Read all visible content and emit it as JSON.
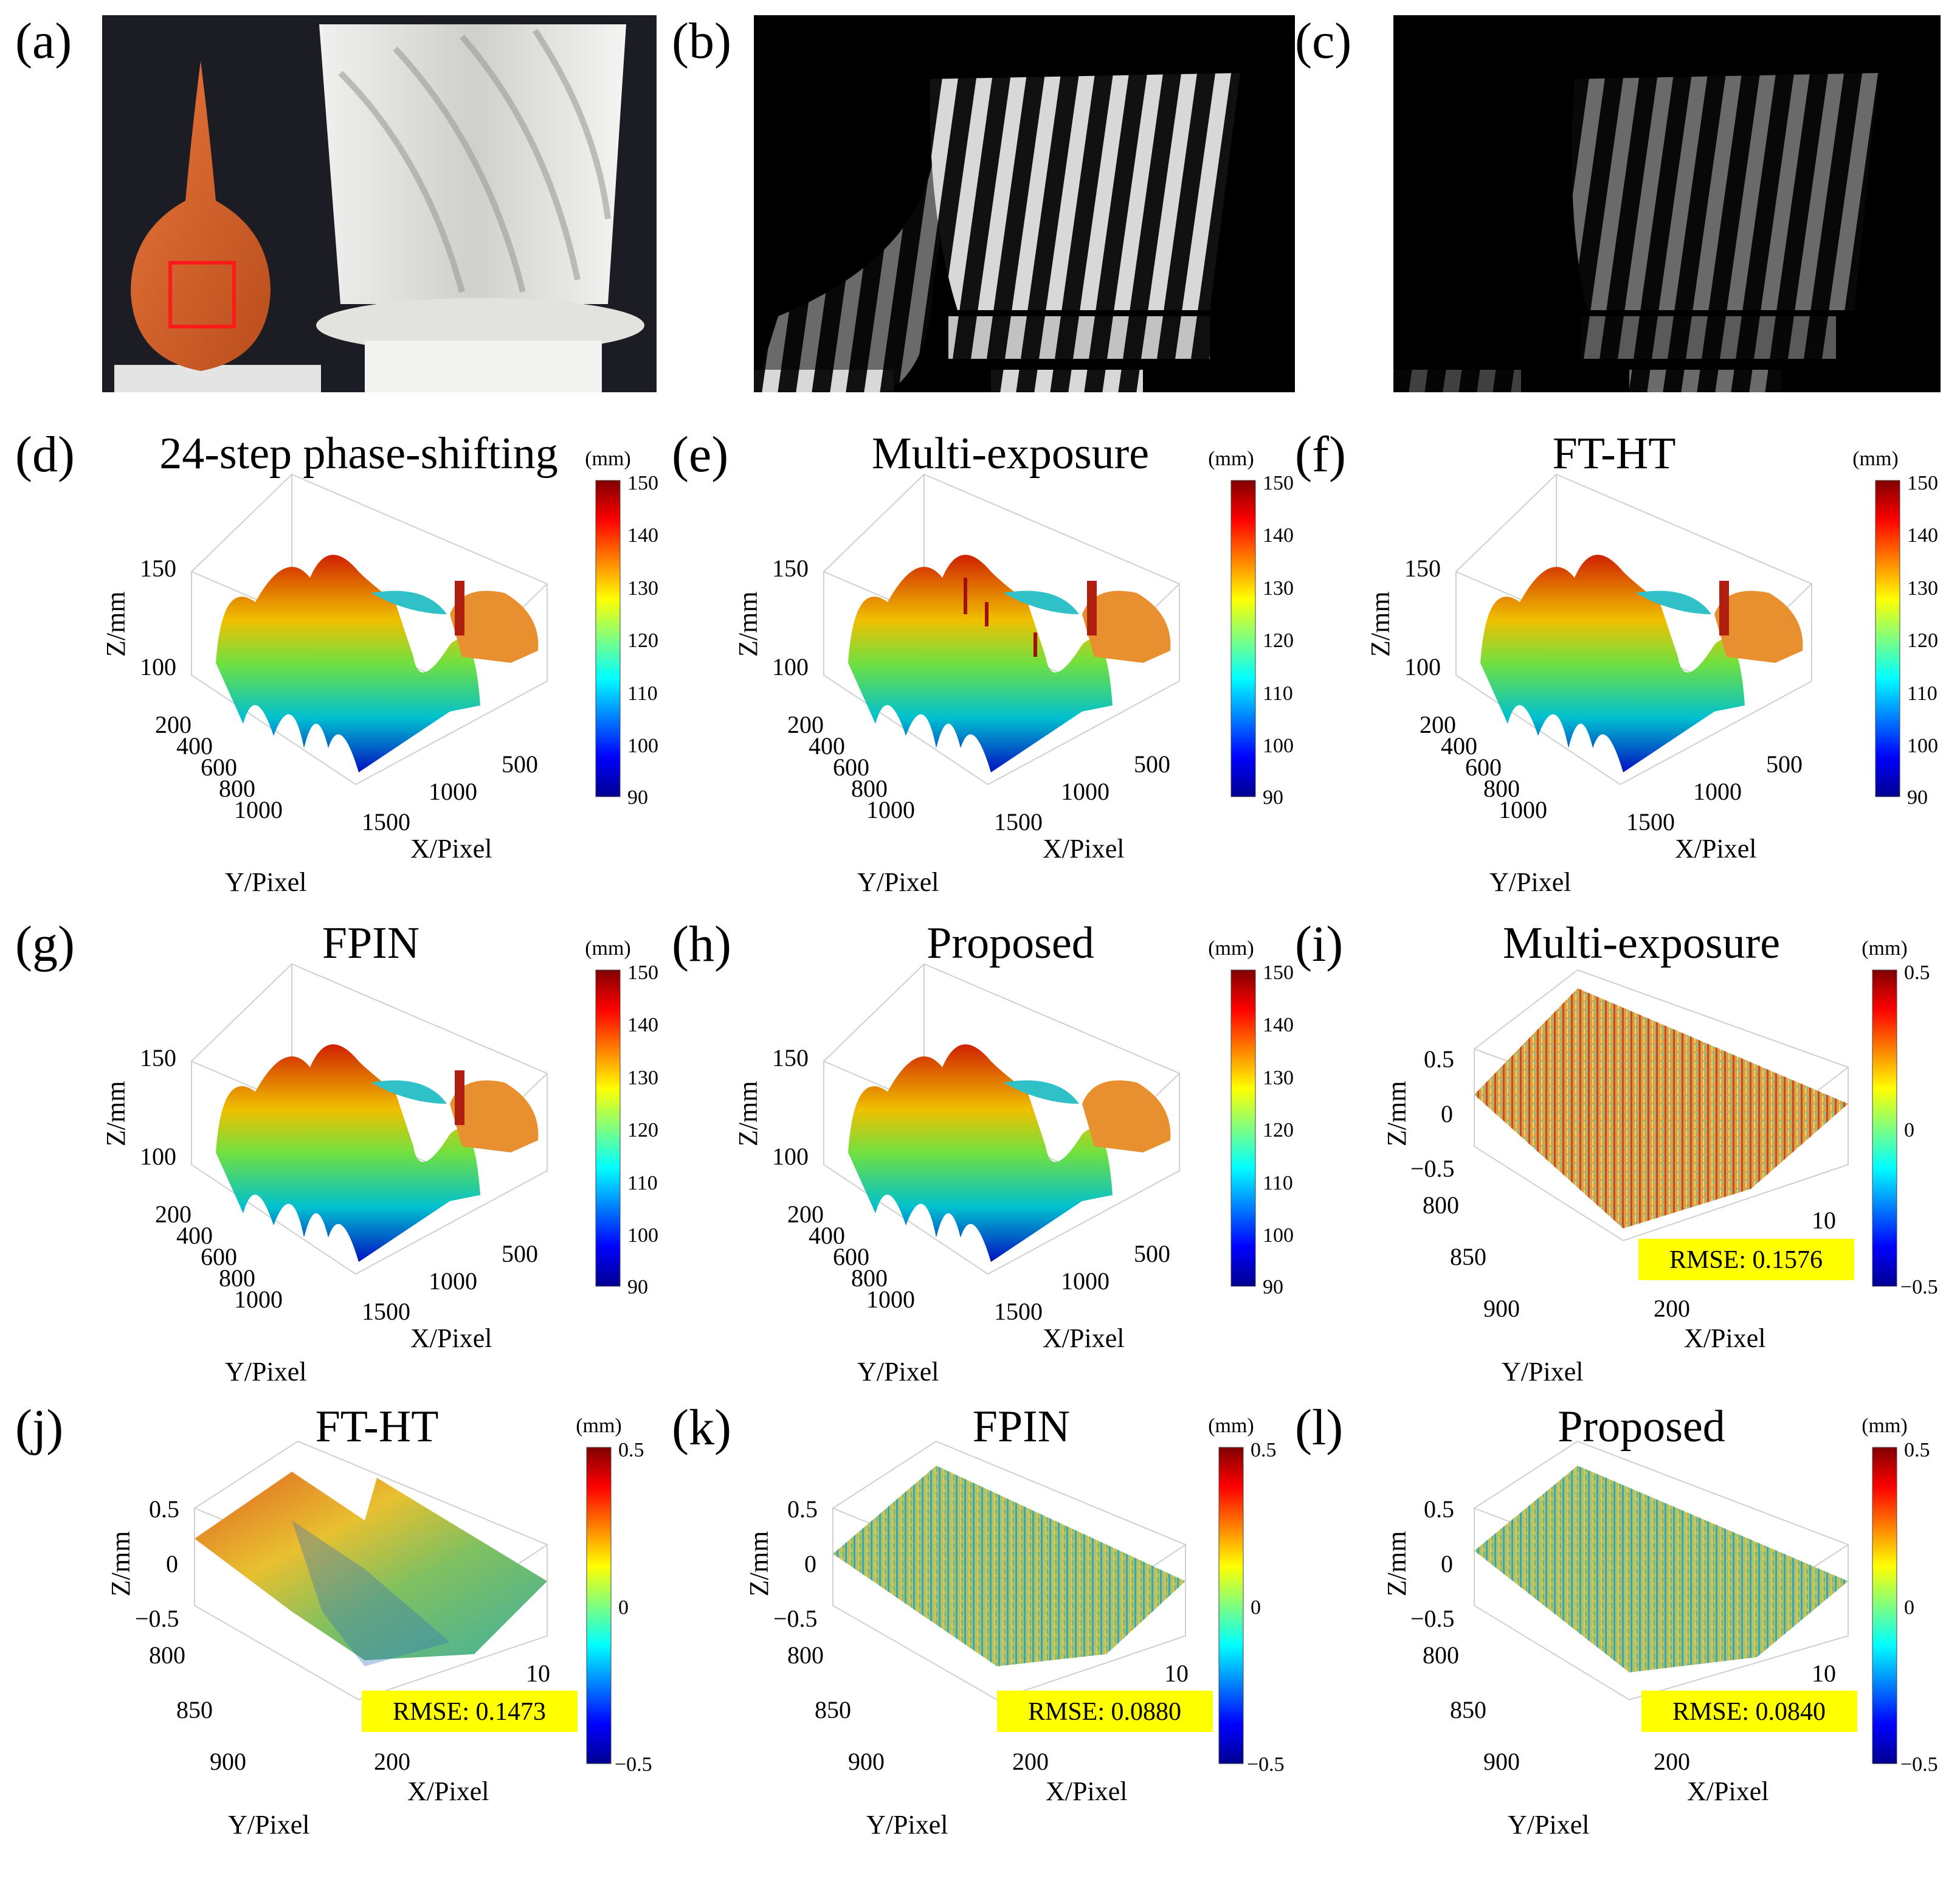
{
  "photos": [
    {
      "label": "(a)"
    },
    {
      "label": "(b)"
    },
    {
      "label": "(c)"
    }
  ],
  "panels": [
    {
      "label": "(d)",
      "title": "24-step phase-shifting",
      "type": "shape"
    },
    {
      "label": "(e)",
      "title": "Multi-exposure",
      "type": "shape"
    },
    {
      "label": "(f)",
      "title": "FT-HT",
      "type": "shape"
    },
    {
      "label": "(g)",
      "title": "FPIN",
      "type": "shape"
    },
    {
      "label": "(h)",
      "title": "Proposed",
      "type": "shape"
    },
    {
      "label": "(i)",
      "title": "Multi-exposure",
      "type": "error",
      "rmse": "RMSE: 0.1576"
    },
    {
      "label": "(j)",
      "title": "FT-HT",
      "type": "error",
      "rmse": "RMSE: 0.1473"
    },
    {
      "label": "(k)",
      "title": "FPIN",
      "type": "error",
      "rmse": "RMSE: 0.0880"
    },
    {
      "label": "(l)",
      "title": "Proposed",
      "type": "error",
      "rmse": "RMSE: 0.0840"
    }
  ],
  "axes": {
    "shape": {
      "zlabel": "Z/mm",
      "xlabel": "X/Pixel",
      "ylabel": "Y/Pixel",
      "zticks": [
        "150",
        "100"
      ],
      "yticks": [
        "200",
        "400",
        "600",
        "800",
        "1000"
      ],
      "xticks": [
        "500",
        "1000",
        "1500"
      ],
      "colorbar": {
        "unit": "(mm)",
        "ticks": [
          "150",
          "140",
          "130",
          "120",
          "110",
          "100",
          "90"
        ]
      }
    },
    "error": {
      "zlabel": "Z/mm",
      "xlabel": "X/Pixel",
      "ylabel": "Y/Pixel",
      "zticks": [
        "0.5",
        "0",
        "−0.5"
      ],
      "yticks": [
        "800",
        "850",
        "900"
      ],
      "xticks": [
        "10",
        "200"
      ],
      "colorbar": {
        "unit": "(mm)",
        "ticks": [
          "0.5",
          "0",
          "−0.5"
        ]
      }
    }
  },
  "chart_data": [
    {
      "type": "surface",
      "panel": "(d)",
      "title": "24-step phase-shifting",
      "zlabel": "Z/mm",
      "xlabel": "X/Pixel",
      "ylabel": "Y/Pixel",
      "zlim": [
        90,
        150
      ],
      "colorbar_range": [
        90,
        150
      ]
    },
    {
      "type": "surface",
      "panel": "(e)",
      "title": "Multi-exposure",
      "zlabel": "Z/mm",
      "xlabel": "X/Pixel",
      "ylabel": "Y/Pixel",
      "zlim": [
        90,
        150
      ],
      "colorbar_range": [
        90,
        150
      ]
    },
    {
      "type": "surface",
      "panel": "(f)",
      "title": "FT-HT",
      "zlabel": "Z/mm",
      "xlabel": "X/Pixel",
      "ylabel": "Y/Pixel",
      "zlim": [
        90,
        150
      ],
      "colorbar_range": [
        90,
        150
      ]
    },
    {
      "type": "surface",
      "panel": "(g)",
      "title": "FPIN",
      "zlabel": "Z/mm",
      "xlabel": "X/Pixel",
      "ylabel": "Y/Pixel",
      "zlim": [
        90,
        150
      ],
      "colorbar_range": [
        90,
        150
      ]
    },
    {
      "type": "surface",
      "panel": "(h)",
      "title": "Proposed",
      "zlabel": "Z/mm",
      "xlabel": "X/Pixel",
      "ylabel": "Y/Pixel",
      "zlim": [
        90,
        150
      ],
      "colorbar_range": [
        90,
        150
      ]
    },
    {
      "type": "surface",
      "panel": "(i)",
      "title": "Multi-exposure",
      "zlim": [
        -0.5,
        0.5
      ],
      "rmse": 0.1576
    },
    {
      "type": "surface",
      "panel": "(j)",
      "title": "FT-HT",
      "zlim": [
        -0.5,
        0.5
      ],
      "rmse": 0.1473
    },
    {
      "type": "surface",
      "panel": "(k)",
      "title": "FPIN",
      "zlim": [
        -0.5,
        0.5
      ],
      "rmse": 0.088
    },
    {
      "type": "surface",
      "panel": "(l)",
      "title": "Proposed",
      "zlim": [
        -0.5,
        0.5
      ],
      "rmse": 0.084
    }
  ],
  "colors": {
    "rmse_bg": "#ffff00",
    "roi_box": "#ff1a1a",
    "photo_bg": "#1c1c24",
    "pot": "#d9622c"
  }
}
